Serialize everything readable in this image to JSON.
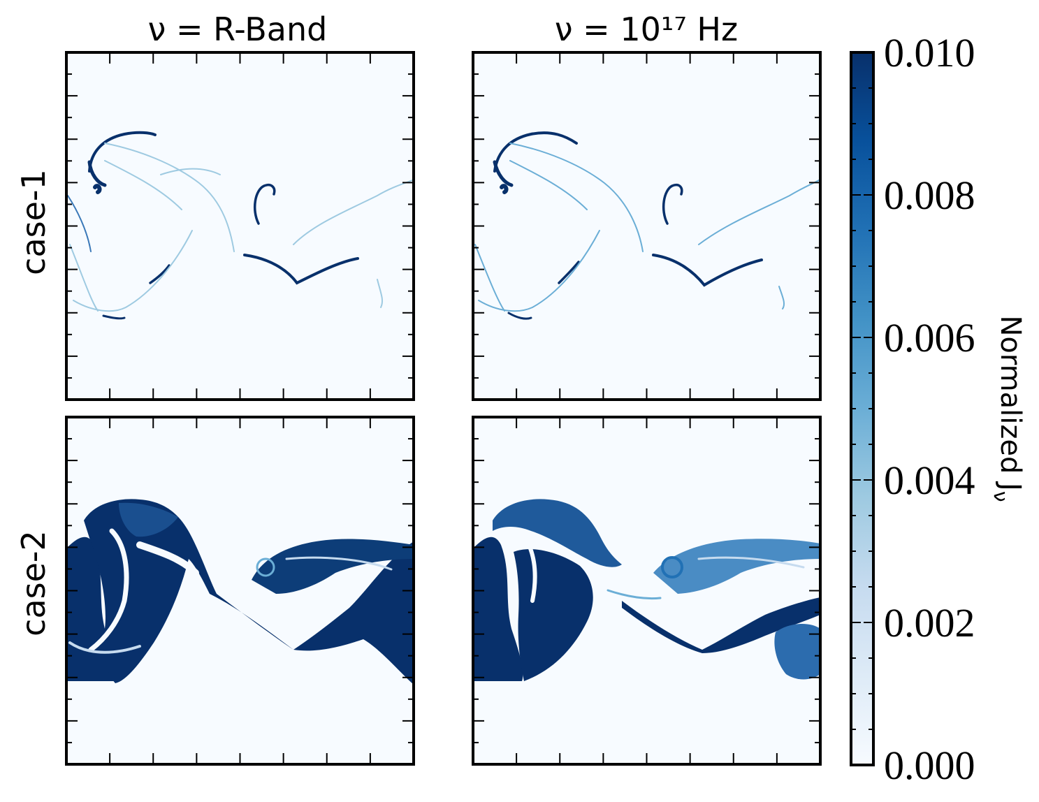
{
  "chart_data": {
    "type": "heatmap",
    "colormap": "Blues",
    "colormap_low": "#f7fbff",
    "colormap_high": "#08306b",
    "column_titles": [
      "ν = R-Band",
      "ν = 10¹⁷ Hz"
    ],
    "row_labels": [
      "case-1",
      "case-2"
    ],
    "panels": [
      {
        "row": "case-1",
        "column": "ν = R-Band"
      },
      {
        "row": "case-1",
        "column": "ν = 10¹⁷ Hz"
      },
      {
        "row": "case-2",
        "column": "ν = R-Band"
      },
      {
        "row": "case-2",
        "column": "ν = 10¹⁷ Hz"
      }
    ],
    "colorbar": {
      "label": "Normalized J_ν",
      "range": [
        0.0,
        0.01
      ],
      "ticks": [
        0.0,
        0.002,
        0.004,
        0.006,
        0.008,
        0.01
      ],
      "tick_labels": [
        "0.000",
        "0.002",
        "0.004",
        "0.006",
        "0.008",
        "0.010"
      ]
    }
  }
}
